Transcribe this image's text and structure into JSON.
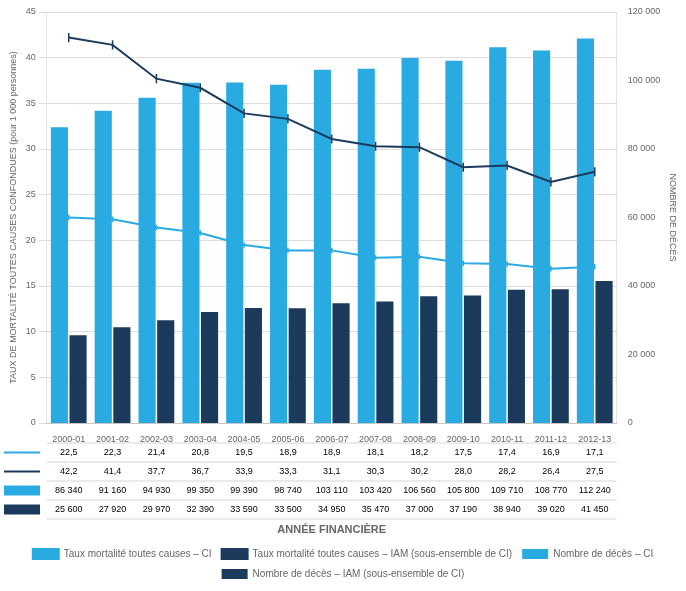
{
  "chart_data": {
    "type": "bar",
    "x_label": "ANNÉE FINANCIÈRE",
    "y_label": "TAUX DE MORTALITÉ TOUTES CAUSES CONFONDUES (pour 1 000 personnes)",
    "y2_label": "NOMBRE DE DÉCÈS",
    "categories": [
      "2000-01",
      "2001-02",
      "2002-03",
      "2003-04",
      "2004-05",
      "2005-06",
      "2006-07",
      "2007-08",
      "2008-09",
      "2009-10",
      "2010-11",
      "2011-12",
      "2012-13"
    ],
    "series": [
      {
        "name": "Taux mortalité toutes causes – CI",
        "type": "line",
        "color": "#29ABE2",
        "values": [
          22.5,
          22.3,
          21.4,
          20.8,
          19.5,
          18.9,
          18.9,
          18.1,
          18.2,
          17.5,
          17.4,
          16.9,
          17.1
        ],
        "errors": [
          0.3,
          0.3,
          0.3,
          0.3,
          0.3,
          0.3,
          0.3,
          0.3,
          0.3,
          0.3,
          0.3,
          0.3,
          0.3
        ],
        "value_labels": [
          "22,5",
          "22,3",
          "21,4",
          "20,8",
          "19,5",
          "18,9",
          "18,9",
          "18,1",
          "18,2",
          "17,5",
          "17,4",
          "16,9",
          "17,1"
        ]
      },
      {
        "name": "Nombre de décès – CI",
        "type": "bar",
        "axis": "y2",
        "color": "#29ABE2",
        "values": [
          86340,
          91160,
          94930,
          99350,
          99390,
          98740,
          103110,
          103420,
          106560,
          105800,
          109710,
          108770,
          112240
        ],
        "value_labels": [
          "86 340",
          "91 160",
          "94 930",
          "99 350",
          "99 390",
          "98 740",
          "103 110",
          "103 420",
          "106 560",
          "105 800",
          "109 710",
          "108 770",
          "112 240"
        ]
      },
      {
        "name": "Taux mortalité toutes causes – IAM (sous-ensemble de CI)",
        "type": "line",
        "color": "#1B3A5C",
        "values": [
          42.2,
          41.4,
          37.7,
          36.7,
          33.9,
          33.3,
          31.1,
          30.3,
          30.2,
          28.0,
          28.2,
          26.4,
          27.5
        ],
        "errors": [
          0.5,
          0.5,
          0.5,
          0.5,
          0.5,
          0.5,
          0.5,
          0.5,
          0.5,
          0.5,
          0.5,
          0.5,
          0.5
        ],
        "value_labels": [
          "42,2",
          "41,4",
          "37,7",
          "36,7",
          "33,9",
          "33,3",
          "31,1",
          "30,3",
          "30,2",
          "28,0",
          "28,2",
          "26,4",
          "27,5"
        ]
      },
      {
        "name": "Nombre de décès – IAM (sous-ensemble de CI)",
        "type": "bar",
        "axis": "y2",
        "color": "#1B3A5C",
        "values": [
          25600,
          27920,
          29970,
          32390,
          33590,
          33500,
          34950,
          35470,
          37000,
          37190,
          38940,
          39020,
          41450
        ],
        "value_labels": [
          "25 600",
          "27 920",
          "29 970",
          "32 390",
          "33 590",
          "33 500",
          "34 950",
          "35 470",
          "37 000",
          "37 190",
          "38 940",
          "39 020",
          "41 450"
        ]
      }
    ],
    "ylim": [
      0,
      45
    ],
    "yticks": [
      0,
      5,
      10,
      15,
      20,
      25,
      30,
      35,
      40,
      45
    ],
    "y2lim": [
      0,
      120000
    ],
    "y2ticks": [
      0,
      {
        "value": 20000,
        "label": "20 000"
      },
      {
        "value": 40000,
        "label": "40 000"
      },
      {
        "value": 60000,
        "label": "60 000"
      },
      {
        "value": 80000,
        "label": "80 000"
      },
      {
        "value": 100000,
        "label": "100 000"
      },
      {
        "value": 120000,
        "label": "120 000"
      }
    ],
    "grid": true,
    "legend": "bottom"
  }
}
